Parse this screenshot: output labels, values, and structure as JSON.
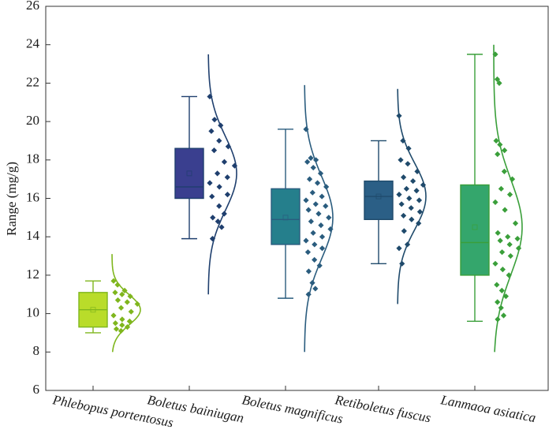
{
  "chart_data": {
    "type": "box",
    "title": "",
    "xlabel": "",
    "ylabel": "Range (mg/g)",
    "ylim": [
      6,
      26
    ],
    "yticks": [
      6,
      8,
      10,
      12,
      14,
      16,
      18,
      20,
      22,
      24,
      26
    ],
    "grid": false,
    "legend": "none",
    "categories": [
      "Phlebopus portentosus",
      "Boletus bainiugan",
      "Boletus magnificus",
      "Retiboletus fuscus",
      "Lanmaoa asiatica"
    ],
    "series": [
      {
        "category": "Phlebopus portentosus",
        "color": "#b9dc2a",
        "stroke": "#7fb61d",
        "whisker_low": 9.0,
        "q1": 9.3,
        "median": 10.2,
        "mean": 10.2,
        "q3": 11.1,
        "whisker_high": 11.7,
        "curve_range": [
          8.0,
          13.1
        ],
        "points": [
          11.7,
          11.5,
          11.2,
          11.1,
          11.0,
          10.9,
          10.7,
          10.6,
          10.5,
          10.3,
          10.1,
          9.9,
          9.7,
          9.6,
          9.5,
          9.4,
          9.3,
          9.2,
          9.1
        ]
      },
      {
        "category": "Boletus bainiugan",
        "color": "#3a3f8f",
        "stroke": "#1f3f6e",
        "whisker_low": 13.9,
        "q1": 16.0,
        "median": 16.6,
        "mean": 17.3,
        "q3": 18.6,
        "whisker_high": 21.3,
        "curve_range": [
          11.0,
          23.5
        ],
        "points": [
          21.3,
          20.1,
          19.8,
          19.5,
          19.0,
          18.7,
          18.5,
          17.9,
          17.7,
          17.3,
          17.1,
          16.8,
          16.6,
          16.2,
          16.1,
          15.6,
          15.2,
          15.0,
          14.8,
          14.5,
          13.9
        ]
      },
      {
        "category": "Boletus magnificus",
        "color": "#257f8c",
        "stroke": "#2a5c7e",
        "whisker_low": 10.8,
        "q1": 13.6,
        "median": 14.9,
        "mean": 15.0,
        "q3": 16.5,
        "whisker_high": 19.6,
        "curve_range": [
          8.0,
          21.9
        ],
        "points": [
          19.6,
          18.1,
          18.0,
          17.9,
          17.6,
          17.3,
          17.0,
          16.8,
          16.6,
          16.3,
          16.1,
          15.9,
          15.7,
          15.6,
          15.4,
          15.2,
          15.0,
          14.8,
          14.6,
          14.4,
          14.2,
          14.0,
          13.8,
          13.6,
          13.4,
          13.2,
          12.8,
          12.5,
          12.2,
          11.6,
          11.3,
          11.0
        ]
      },
      {
        "category": "Retiboletus fuscus",
        "color": "#2b5f86",
        "stroke": "#1f4a6b",
        "whisker_low": 12.6,
        "q1": 14.9,
        "median": 16.1,
        "mean": 16.1,
        "q3": 16.9,
        "whisker_high": 19.0,
        "curve_range": [
          10.5,
          21.7
        ],
        "points": [
          20.3,
          19.0,
          18.6,
          18.0,
          17.8,
          17.4,
          17.1,
          16.9,
          16.7,
          16.5,
          16.4,
          16.2,
          16.0,
          15.9,
          15.7,
          15.5,
          15.3,
          15.1,
          14.9,
          14.7,
          14.3,
          13.6,
          13.4,
          12.6
        ]
      },
      {
        "category": "Lanmaoa asiatica",
        "color": "#34a66c",
        "stroke": "#3a9f3a",
        "whisker_low": 9.6,
        "q1": 12.0,
        "median": 13.7,
        "mean": 14.5,
        "q3": 16.7,
        "whisker_high": 23.5,
        "curve_range": [
          8.0,
          24.0
        ],
        "points": [
          23.5,
          22.2,
          22.0,
          19.0,
          18.8,
          18.5,
          18.3,
          17.4,
          17.0,
          16.5,
          16.2,
          15.8,
          15.4,
          14.7,
          14.2,
          14.0,
          13.9,
          13.8,
          13.6,
          13.4,
          13.2,
          13.0,
          12.6,
          12.3,
          12.0,
          11.5,
          11.2,
          10.9,
          10.6,
          10.3,
          9.9,
          9.7
        ]
      }
    ]
  }
}
